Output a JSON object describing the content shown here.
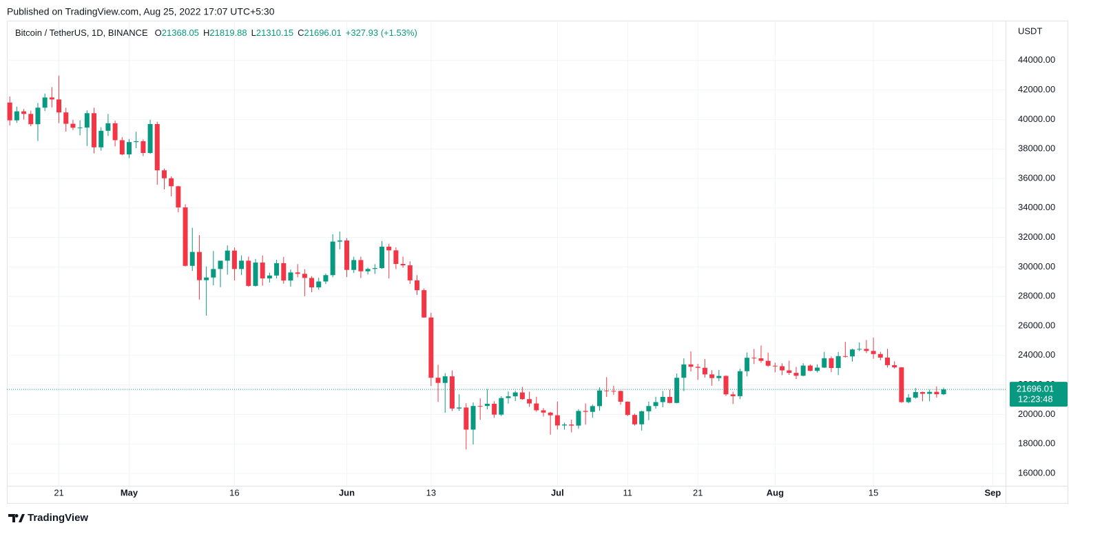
{
  "published": "Published on TradingView.com, Aug 25, 2022 17:07 UTC+5:30",
  "symbol": "Bitcoin / TetherUS, 1D, BINANCE",
  "ohlc_letters": [
    "O",
    "H",
    "L",
    "C"
  ],
  "change": "+327.93 (+1.53%)",
  "currency": "USDT",
  "countdown": "12:23:48",
  "brand": "TradingView",
  "chart_data": {
    "type": "candlestick",
    "up_color": "#089981",
    "down_color": "#f23645",
    "grid": true,
    "xlim": [
      "2022-04-13",
      "2022-09-04"
    ],
    "ylim": [
      15160,
      46700
    ],
    "xticks": [
      {
        "value": "2022-04-21",
        "label": "21"
      },
      {
        "value": "2022-05-01",
        "label": "May"
      },
      {
        "value": "2022-05-16",
        "label": "16"
      },
      {
        "value": "2022-06-01",
        "label": "Jun"
      },
      {
        "value": "2022-06-13",
        "label": "13"
      },
      {
        "value": "2022-07-01",
        "label": "Jul"
      },
      {
        "value": "2022-07-11",
        "label": "11"
      },
      {
        "value": "2022-07-21",
        "label": "21"
      },
      {
        "value": "2022-08-01",
        "label": "Aug"
      },
      {
        "value": "2022-08-15",
        "label": "15"
      },
      {
        "value": "2022-09-01",
        "label": "Sep"
      }
    ],
    "yticks": [
      {
        "value": 16000,
        "label": "16000.00"
      },
      {
        "value": 18000,
        "label": "18000.00"
      },
      {
        "value": 20000,
        "label": "20000.00"
      },
      {
        "value": 22000,
        "label": "22000.00"
      },
      {
        "value": 24000,
        "label": "24000.00"
      },
      {
        "value": 26000,
        "label": "26000.00"
      },
      {
        "value": 28000,
        "label": "28000.00"
      },
      {
        "value": 30000,
        "label": "30000.00"
      },
      {
        "value": 32000,
        "label": "32000.00"
      },
      {
        "value": 34000,
        "label": "34000.00"
      },
      {
        "value": 36000,
        "label": "36000.00"
      },
      {
        "value": 38000,
        "label": "38000.00"
      },
      {
        "value": 40000,
        "label": "40000.00"
      },
      {
        "value": 42000,
        "label": "42000.00"
      },
      {
        "value": 44000,
        "label": "44000.00"
      }
    ],
    "x": [
      "2022-04-14",
      "2022-04-15",
      "2022-04-16",
      "2022-04-17",
      "2022-04-18",
      "2022-04-19",
      "2022-04-20",
      "2022-04-21",
      "2022-04-22",
      "2022-04-23",
      "2022-04-24",
      "2022-04-25",
      "2022-04-26",
      "2022-04-27",
      "2022-04-28",
      "2022-04-29",
      "2022-04-30",
      "2022-05-01",
      "2022-05-02",
      "2022-05-03",
      "2022-05-04",
      "2022-05-05",
      "2022-05-06",
      "2022-05-07",
      "2022-05-08",
      "2022-05-09",
      "2022-05-10",
      "2022-05-11",
      "2022-05-12",
      "2022-05-13",
      "2022-05-14",
      "2022-05-15",
      "2022-05-16",
      "2022-05-17",
      "2022-05-18",
      "2022-05-19",
      "2022-05-20",
      "2022-05-21",
      "2022-05-22",
      "2022-05-23",
      "2022-05-24",
      "2022-05-25",
      "2022-05-26",
      "2022-05-27",
      "2022-05-28",
      "2022-05-29",
      "2022-05-30",
      "2022-05-31",
      "2022-06-01",
      "2022-06-02",
      "2022-06-03",
      "2022-06-04",
      "2022-06-05",
      "2022-06-06",
      "2022-06-07",
      "2022-06-08",
      "2022-06-09",
      "2022-06-10",
      "2022-06-11",
      "2022-06-12",
      "2022-06-13",
      "2022-06-14",
      "2022-06-15",
      "2022-06-16",
      "2022-06-17",
      "2022-06-18",
      "2022-06-19",
      "2022-06-20",
      "2022-06-21",
      "2022-06-22",
      "2022-06-23",
      "2022-06-24",
      "2022-06-25",
      "2022-06-26",
      "2022-06-27",
      "2022-06-28",
      "2022-06-29",
      "2022-06-30",
      "2022-07-01",
      "2022-07-02",
      "2022-07-03",
      "2022-07-04",
      "2022-07-05",
      "2022-07-06",
      "2022-07-07",
      "2022-07-08",
      "2022-07-09",
      "2022-07-10",
      "2022-07-11",
      "2022-07-12",
      "2022-07-13",
      "2022-07-14",
      "2022-07-15",
      "2022-07-16",
      "2022-07-17",
      "2022-07-18",
      "2022-07-19",
      "2022-07-20",
      "2022-07-21",
      "2022-07-22",
      "2022-07-23",
      "2022-07-24",
      "2022-07-25",
      "2022-07-26",
      "2022-07-27",
      "2022-07-28",
      "2022-07-29",
      "2022-07-30",
      "2022-07-31",
      "2022-08-01",
      "2022-08-02",
      "2022-08-03",
      "2022-08-04",
      "2022-08-05",
      "2022-08-06",
      "2022-08-07",
      "2022-08-08",
      "2022-08-09",
      "2022-08-10",
      "2022-08-11",
      "2022-08-12",
      "2022-08-13",
      "2022-08-14",
      "2022-08-15",
      "2022-08-16",
      "2022-08-17",
      "2022-08-18",
      "2022-08-19",
      "2022-08-20",
      "2022-08-21",
      "2022-08-22",
      "2022-08-23",
      "2022-08-24",
      "2022-08-25"
    ],
    "open": [
      41147,
      39942,
      40552,
      40378,
      39678,
      40801,
      41493,
      41358,
      40480,
      39709,
      39441,
      39450,
      40426,
      38112,
      39235,
      39742,
      38596,
      37630,
      38468,
      38525,
      37728,
      39690,
      36552,
      36013,
      35472,
      34038,
      30076,
      31017,
      29104,
      29284,
      29862,
      30425,
      31110,
      29862,
      30425,
      28716,
      30297,
      29224,
      29420,
      30258,
      29080,
      29627,
      29535,
      29255,
      28617,
      29014,
      29445,
      31720,
      31792,
      29799,
      30467,
      29705,
      29864,
      29920,
      31373,
      31125,
      30205,
      30110,
      29091,
      28424,
      26574,
      22487,
      22136,
      22583,
      20401,
      20469,
      18970,
      20574,
      20573,
      20723,
      19987,
      21111,
      21227,
      21491,
      21038,
      20743,
      20281,
      20124,
      19943,
      19252,
      19315,
      19243,
      20236,
      20175,
      20564,
      21624,
      21594,
      21591,
      20862,
      19963,
      19329,
      20212,
      20569,
      20836,
      21190,
      20779,
      22485,
      23389,
      23231,
      23164,
      22714,
      22465,
      22609,
      21361,
      21239,
      22930,
      23843,
      23804,
      23635,
      23303,
      23268,
      22987,
      22818,
      22622,
      23312,
      22954,
      23175,
      23810,
      23149,
      23954,
      23934,
      24403,
      24441,
      24305,
      24094,
      23854,
      23342,
      23191,
      20834,
      21140,
      21516,
      21399,
      21529,
      21368.05
    ],
    "high": [
      41560,
      40870,
      40709,
      40595,
      41116,
      41760,
      42199,
      42976,
      40795,
      39980,
      39940,
      40616,
      40797,
      39474,
      40372,
      39925,
      38795,
      38675,
      39167,
      38651,
      39980,
      39845,
      36675,
      36146,
      35510,
      34243,
      32658,
      32162,
      30032,
      31083,
      30343,
      31460,
      31325,
      30788,
      30700,
      30545,
      30777,
      29611,
      30487,
      30680,
      29827,
      30194,
      29850,
      29379,
      29266,
      29550,
      32222,
      32399,
      31957,
      30690,
      30699,
      29955,
      30189,
      31765,
      31574,
      31330,
      30700,
      30383,
      29440,
      28544,
      26895,
      23362,
      22800,
      22983,
      21365,
      20758,
      20815,
      21090,
      21723,
      20900,
      21233,
      21558,
      21614,
      21868,
      21539,
      21200,
      20432,
      20179,
      20877,
      19443,
      19648,
      20354,
      20750,
      20675,
      21838,
      22527,
      21950,
      21615,
      20884,
      20055,
      20253,
      20872,
      21200,
      21588,
      21683,
      22777,
      23800,
      24276,
      23427,
      23756,
      22999,
      23014,
      22652,
      21539,
      23100,
      24199,
      24442,
      24668,
      24194,
      23509,
      23466,
      23647,
      23223,
      23472,
      23398,
      23395,
      24245,
      23933,
      24226,
      24918,
      24456,
      24888,
      25047,
      25211,
      24247,
      24446,
      23600,
      23203,
      21382,
      21800,
      21548,
      21684,
      21900,
      21819.88
    ],
    "low": [
      39590,
      39770,
      39991,
      39546,
      38536,
      40571,
      40820,
      39751,
      39177,
      39285,
      38929,
      38200,
      37702,
      37881,
      38881,
      38175,
      37578,
      37386,
      38052,
      37517,
      37670,
      35571,
      35258,
      34785,
      33713,
      30033,
      29730,
      27785,
      26700,
      28751,
      28630,
      29480,
      29087,
      29450,
      28654,
      28670,
      28730,
      28947,
      29225,
      28866,
      28669,
      29294,
      28018,
      28282,
      28450,
      28839,
      29299,
      31200,
      29311,
      29594,
      29251,
      29488,
      29522,
      29880,
      29219,
      29850,
      29944,
      28850,
      28099,
      26560,
      21925,
      20846,
      20111,
      20232,
      20246,
      17622,
      17960,
      19637,
      20348,
      19770,
      19890,
      20739,
      20906,
      21000,
      20510,
      20183,
      19854,
      18626,
      18975,
      18975,
      18781,
      19020,
      19305,
      19774,
      20251,
      21187,
      21331,
      20656,
      19890,
      19240,
      18910,
      19616,
      20390,
      20484,
      20750,
      20762,
      21579,
      22906,
      22341,
      22500,
      21950,
      22257,
      21250,
      20706,
      21042,
      22582,
      23414,
      23502,
      23227,
      22850,
      22664,
      22681,
      22400,
      22586,
      22923,
      22841,
      23155,
      22865,
      22664,
      23852,
      23580,
      24296,
      24160,
      23773,
      23671,
      23180,
      23107,
      20783,
      20761,
      21069,
      20890,
      20890,
      21145,
      21310.15
    ],
    "close": [
      39942,
      40552,
      40378,
      39678,
      40801,
      41493,
      41358,
      40480,
      39709,
      39441,
      39450,
      40426,
      38112,
      39235,
      39742,
      38596,
      37630,
      38468,
      38525,
      37728,
      39690,
      36552,
      36013,
      35472,
      34038,
      30076,
      31017,
      29104,
      29284,
      29862,
      30425,
      31110,
      29862,
      30425,
      28716,
      30297,
      29224,
      29420,
      30258,
      29080,
      29627,
      29535,
      29255,
      28617,
      29014,
      29445,
      31720,
      31792,
      29799,
      30467,
      29705,
      29864,
      29920,
      31373,
      31125,
      30205,
      30110,
      29091,
      28424,
      26574,
      22487,
      22136,
      22583,
      20401,
      20469,
      18970,
      20574,
      20573,
      20723,
      19987,
      21111,
      21227,
      21491,
      21038,
      20743,
      20281,
      20124,
      19943,
      19252,
      19315,
      19243,
      20236,
      20175,
      20564,
      21624,
      21594,
      21591,
      20862,
      19963,
      19329,
      20212,
      20569,
      20836,
      21190,
      20779,
      22485,
      23389,
      23231,
      23164,
      22714,
      22465,
      22609,
      21361,
      21239,
      22930,
      23843,
      23804,
      23635,
      23303,
      23268,
      22987,
      22818,
      22622,
      23312,
      22954,
      23175,
      23810,
      23149,
      23954,
      23934,
      24403,
      24441,
      24305,
      24094,
      23854,
      23342,
      23191,
      20834,
      21140,
      21516,
      21399,
      21529,
      21368,
      21696.01
    ]
  }
}
